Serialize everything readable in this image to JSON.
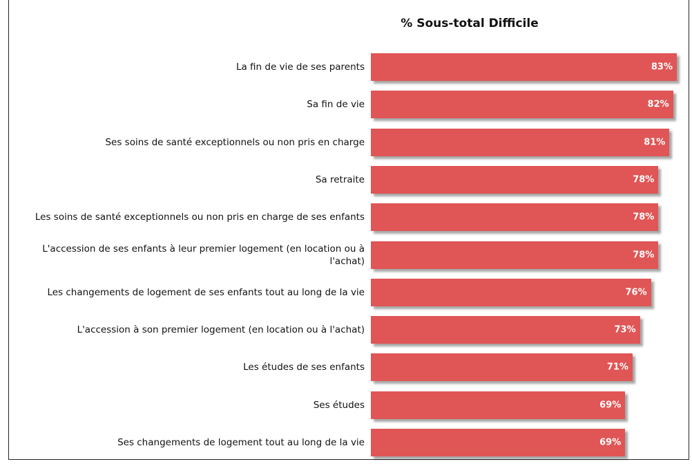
{
  "chart_data": {
    "type": "bar",
    "orientation": "horizontal",
    "title": "% Sous-total Difficile",
    "categories": [
      "La fin de vie de ses parents",
      "Sa fin de vie",
      "Ses soins de santé exceptionnels ou non pris en charge",
      "Sa retraite",
      "Les soins de santé exceptionnels ou non pris en charge de ses enfants",
      "L'accession de ses enfants à leur premier logement (en location ou à l'achat)",
      "Les changements de logement de ses enfants tout au long de la vie",
      "L'accession à son premier logement (en location ou à l'achat)",
      "Les études de ses enfants",
      "Ses études",
      "Ses changements de logement tout au long de la vie"
    ],
    "values": [
      83,
      82,
      81,
      78,
      78,
      78,
      76,
      73,
      71,
      69,
      69
    ],
    "value_labels": [
      "83%",
      "82%",
      "81%",
      "78%",
      "78%",
      "78%",
      "76%",
      "73%",
      "71%",
      "69%",
      "69%"
    ],
    "color": "#e05555"
  }
}
